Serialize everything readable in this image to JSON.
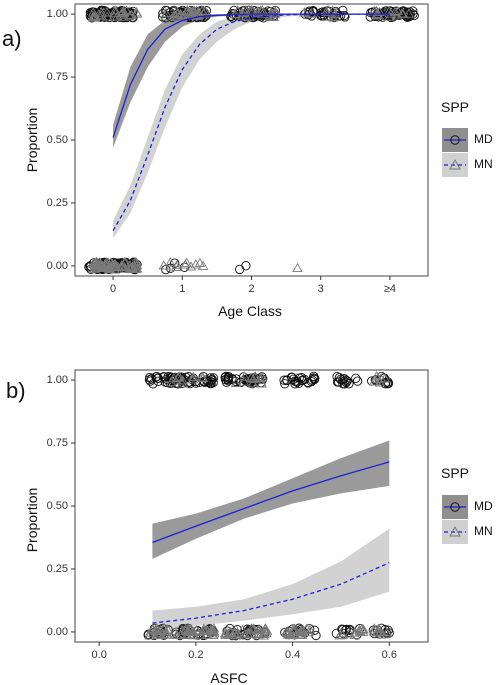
{
  "colors": {
    "md_line": "#1f1fd6",
    "mn_line": "#1f1fd6",
    "md_band": "#8f8f8f",
    "mn_band": "#d0d0d0",
    "point_md": "#111111",
    "point_mn": "#7a7a7a",
    "panel_border": "#444444"
  },
  "chart_data": [
    {
      "panel": "a)",
      "type": "scatter",
      "xlabel": "Age Class",
      "ylabel": "Proportion",
      "x_ticks": [
        "0",
        "1",
        "2",
        "3",
        "≥4"
      ],
      "y_ticks": [
        "0.00",
        "0.25",
        "0.50",
        "0.75",
        "1.00"
      ],
      "xlim": [
        -0.55,
        4.55
      ],
      "ylim": [
        -0.04,
        1.04
      ],
      "legend": {
        "title": "SPP",
        "placement": "right",
        "entries": [
          {
            "label": "MD",
            "line": "solid",
            "marker": "circle"
          },
          {
            "label": "MN",
            "line": "dashed",
            "marker": "triangle"
          }
        ]
      },
      "series": [
        {
          "name": "MD",
          "style": "solid",
          "x": [
            0.0,
            0.25,
            0.5,
            0.75,
            1.0,
            1.25,
            1.5,
            2.0,
            4.0
          ],
          "fit": [
            0.51,
            0.72,
            0.86,
            0.94,
            0.975,
            0.99,
            0.995,
            1.0,
            1.0
          ],
          "lower": [
            0.47,
            0.65,
            0.79,
            0.89,
            0.95,
            0.98,
            0.99,
            1.0,
            1.0
          ],
          "upper": [
            0.56,
            0.79,
            0.92,
            0.975,
            0.99,
            1.0,
            1.0,
            1.0,
            1.0
          ]
        },
        {
          "name": "MN",
          "style": "dashed",
          "x": [
            0.0,
            0.25,
            0.5,
            0.75,
            1.0,
            1.25,
            1.5,
            1.75,
            2.0,
            2.5,
            3.0,
            4.0
          ],
          "fit": [
            0.14,
            0.26,
            0.44,
            0.63,
            0.78,
            0.88,
            0.94,
            0.97,
            0.985,
            0.997,
            1.0,
            1.0
          ],
          "lower": [
            0.11,
            0.21,
            0.37,
            0.55,
            0.71,
            0.82,
            0.89,
            0.94,
            0.97,
            0.99,
            1.0,
            1.0
          ],
          "upper": [
            0.18,
            0.32,
            0.51,
            0.7,
            0.84,
            0.92,
            0.97,
            0.99,
            1.0,
            1.0,
            1.0,
            1.0
          ]
        }
      ],
      "point_clusters": [
        {
          "species": "MD",
          "y": 1,
          "x_from": -0.35,
          "x_to": 0.3,
          "count": 90
        },
        {
          "species": "MN",
          "y": 1,
          "x_from": -0.3,
          "x_to": 0.35,
          "count": 25
        },
        {
          "species": "MD",
          "y": 1,
          "x_from": 0.7,
          "x_to": 1.35,
          "count": 55
        },
        {
          "species": "MN",
          "y": 1,
          "x_from": 0.75,
          "x_to": 1.35,
          "count": 35
        },
        {
          "species": "MD",
          "y": 1,
          "x_from": 1.7,
          "x_to": 2.35,
          "count": 50
        },
        {
          "species": "MN",
          "y": 1,
          "x_from": 1.75,
          "x_to": 2.35,
          "count": 25
        },
        {
          "species": "MD",
          "y": 1,
          "x_from": 2.7,
          "x_to": 3.35,
          "count": 30
        },
        {
          "species": "MN",
          "y": 1,
          "x_from": 2.75,
          "x_to": 3.3,
          "count": 10
        },
        {
          "species": "MD",
          "y": 1,
          "x_from": 3.7,
          "x_to": 4.35,
          "count": 60
        },
        {
          "species": "MN",
          "y": 1,
          "x_from": 3.75,
          "x_to": 4.35,
          "count": 15
        },
        {
          "species": "MD",
          "y": 0,
          "x_from": -0.35,
          "x_to": 0.35,
          "count": 90
        },
        {
          "species": "MN",
          "y": 0,
          "x_from": -0.3,
          "x_to": 0.35,
          "count": 70
        },
        {
          "species": "MD",
          "y": 0,
          "x_from": 0.75,
          "x_to": 1.1,
          "count": 4
        },
        {
          "species": "MN",
          "y": 0,
          "x_from": 0.7,
          "x_to": 1.35,
          "count": 10
        },
        {
          "species": "MD",
          "y": 0,
          "x_from": 1.8,
          "x_to": 1.95,
          "count": 2
        },
        {
          "species": "MN",
          "y": 0,
          "x_from": 2.65,
          "x_to": 2.75,
          "count": 1
        }
      ]
    },
    {
      "panel": "b)",
      "type": "scatter",
      "xlabel": "ASFC",
      "ylabel": "Proportion",
      "x_ticks": [
        "0.0",
        "0.2",
        "0.4",
        "0.6"
      ],
      "y_ticks": [
        "0.00",
        "0.25",
        "0.50",
        "0.75",
        "1.00"
      ],
      "xlim": [
        -0.05,
        0.68
      ],
      "ylim": [
        -0.04,
        1.04
      ],
      "legend": {
        "title": "SPP",
        "placement": "right",
        "entries": [
          {
            "label": "MD",
            "line": "solid",
            "marker": "circle"
          },
          {
            "label": "MN",
            "line": "dashed",
            "marker": "triangle"
          }
        ]
      },
      "series": [
        {
          "name": "MD",
          "style": "solid",
          "x": [
            0.11,
            0.2,
            0.3,
            0.4,
            0.5,
            0.6
          ],
          "fit": [
            0.355,
            0.42,
            0.49,
            0.56,
            0.62,
            0.675
          ],
          "lower": [
            0.29,
            0.37,
            0.45,
            0.51,
            0.55,
            0.58
          ],
          "upper": [
            0.43,
            0.47,
            0.53,
            0.61,
            0.69,
            0.76
          ]
        },
        {
          "name": "MN",
          "style": "dashed",
          "x": [
            0.11,
            0.2,
            0.3,
            0.4,
            0.5,
            0.6
          ],
          "fit": [
            0.035,
            0.055,
            0.085,
            0.13,
            0.19,
            0.275
          ],
          "lower": [
            0.01,
            0.025,
            0.045,
            0.07,
            0.1,
            0.16
          ],
          "upper": [
            0.085,
            0.1,
            0.13,
            0.19,
            0.28,
            0.41
          ]
        }
      ],
      "point_clusters": [
        {
          "species": "MD",
          "y": 1,
          "x_from": 0.1,
          "x_to": 0.24,
          "count": 60
        },
        {
          "species": "MN",
          "y": 1,
          "x_from": 0.14,
          "x_to": 0.22,
          "count": 10
        },
        {
          "species": "MD",
          "y": 1,
          "x_from": 0.26,
          "x_to": 0.34,
          "count": 45
        },
        {
          "species": "MN",
          "y": 1,
          "x_from": 0.28,
          "x_to": 0.34,
          "count": 10
        },
        {
          "species": "MD",
          "y": 1,
          "x_from": 0.38,
          "x_to": 0.45,
          "count": 25
        },
        {
          "species": "MD",
          "y": 1,
          "x_from": 0.49,
          "x_to": 0.54,
          "count": 15
        },
        {
          "species": "MD",
          "y": 1,
          "x_from": 0.56,
          "x_to": 0.6,
          "count": 12
        },
        {
          "species": "MN",
          "y": 1,
          "x_from": 0.56,
          "x_to": 0.6,
          "count": 6
        },
        {
          "species": "MD",
          "y": 0,
          "x_from": 0.1,
          "x_to": 0.24,
          "count": 45
        },
        {
          "species": "MN",
          "y": 0,
          "x_from": 0.1,
          "x_to": 0.25,
          "count": 55
        },
        {
          "species": "MD",
          "y": 0,
          "x_from": 0.26,
          "x_to": 0.35,
          "count": 25
        },
        {
          "species": "MN",
          "y": 0,
          "x_from": 0.26,
          "x_to": 0.35,
          "count": 35
        },
        {
          "species": "MD",
          "y": 0,
          "x_from": 0.38,
          "x_to": 0.45,
          "count": 15
        },
        {
          "species": "MN",
          "y": 0,
          "x_from": 0.38,
          "x_to": 0.45,
          "count": 20
        },
        {
          "species": "MD",
          "y": 0,
          "x_from": 0.49,
          "x_to": 0.54,
          "count": 12
        },
        {
          "species": "MN",
          "y": 0,
          "x_from": 0.49,
          "x_to": 0.55,
          "count": 12
        },
        {
          "species": "MD",
          "y": 0,
          "x_from": 0.56,
          "x_to": 0.6,
          "count": 10
        },
        {
          "species": "MN",
          "y": 0,
          "x_from": 0.56,
          "x_to": 0.61,
          "count": 10
        }
      ]
    }
  ]
}
